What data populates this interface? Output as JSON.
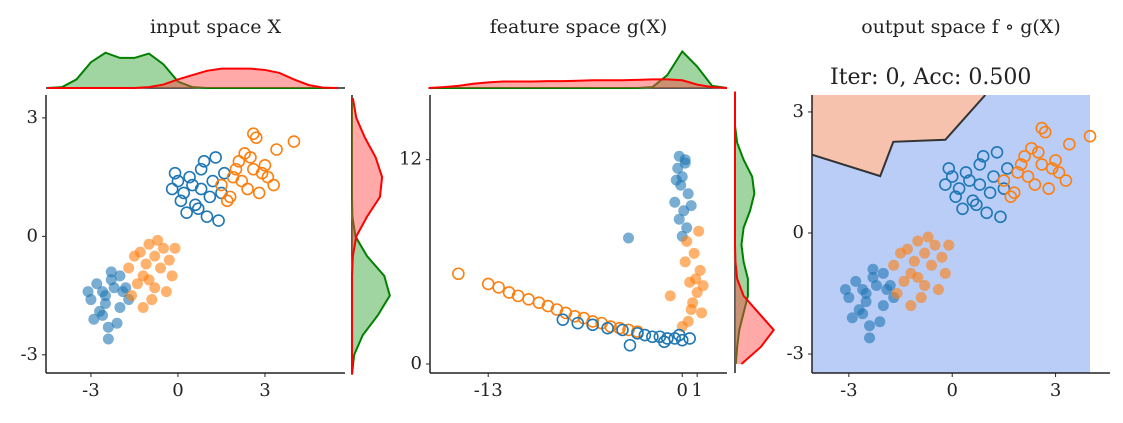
{
  "chart_data": [
    {
      "type": "scatter",
      "title": "input space X",
      "xlim": [
        -4.55,
        5.76
      ],
      "ylim": [
        -3.46,
        3.58
      ],
      "xticks": [
        -3,
        0,
        3
      ],
      "yticks": [
        -3,
        0,
        3
      ],
      "series": [
        {
          "color": "#1f77b4",
          "marker": "filled",
          "x": [
            -2.8,
            -2.5,
            -2.2,
            -2.0,
            -3.0,
            -2.6,
            -2.3,
            -1.9,
            -2.7,
            -2.4,
            -3.1,
            -2.1,
            -2.5,
            -2.9,
            -1.8,
            -2.3,
            -2.6,
            -2.0,
            -2.4,
            -1.7
          ],
          "values": [
            -1.2,
            -1.5,
            -1.3,
            -1.8,
            -1.6,
            -2.0,
            -1.1,
            -1.4,
            -1.9,
            -2.6,
            -1.4,
            -2.2,
            -1.7,
            -2.1,
            -1.3,
            -0.9,
            -1.4,
            -1.0,
            -2.3,
            -1.6
          ]
        },
        {
          "color": "#ff7f0e",
          "marker": "filled",
          "x": [
            -1.5,
            -1.0,
            -0.6,
            -1.2,
            -0.3,
            -0.8,
            -1.4,
            -0.5,
            -1.1,
            -0.9,
            -1.7,
            -0.2,
            -0.7,
            -1.3,
            -0.4,
            -1.0,
            -1.6,
            -0.8,
            -0.1,
            -1.2
          ],
          "values": [
            -0.5,
            -0.2,
            -0.8,
            -1.0,
            -0.6,
            -1.3,
            -1.2,
            -0.3,
            -0.7,
            -1.6,
            -0.8,
            -1.0,
            -0.1,
            -0.4,
            -1.4,
            -1.1,
            -1.5,
            -0.5,
            -0.3,
            -1.8
          ]
        },
        {
          "color": "#1f77b4",
          "marker": "hollow",
          "x": [
            -0.2,
            0.1,
            0.4,
            0.8,
            1.2,
            1.5,
            0.3,
            0.6,
            1.0,
            -0.1,
            0.9,
            1.3,
            0.5,
            0.2,
            1.6,
            0.7,
            1.1,
            0.0,
            1.4,
            0.8
          ],
          "values": [
            1.2,
            0.9,
            1.5,
            1.7,
            1.4,
            1.1,
            0.6,
            0.8,
            0.5,
            1.6,
            1.9,
            2.0,
            1.3,
            1.1,
            1.6,
            0.7,
            1.0,
            1.4,
            0.4,
            1.2
          ]
        },
        {
          "color": "#ff7f0e",
          "marker": "hollow",
          "x": [
            1.5,
            2.0,
            2.5,
            3.0,
            2.7,
            2.2,
            1.8,
            3.4,
            2.9,
            2.4,
            1.7,
            2.6,
            3.1,
            2.1,
            4.0,
            2.8,
            2.3,
            1.9,
            2.6,
            3.3
          ],
          "values": [
            1.3,
            1.7,
            2.0,
            1.8,
            2.5,
            1.4,
            1.0,
            2.2,
            1.6,
            1.2,
            0.9,
            2.6,
            1.5,
            1.9,
            2.4,
            1.1,
            2.1,
            1.5,
            1.7,
            1.3
          ]
        }
      ],
      "top_margin": {
        "ylim": [
          0,
          1
        ],
        "x": [
          -4.5,
          -4,
          -3.5,
          -3,
          -2.5,
          -2,
          -1.5,
          -1,
          -0.5,
          0,
          0.5,
          1,
          1.5,
          2,
          2.5,
          3,
          3.5,
          4,
          4.5,
          5,
          5.5
        ],
        "series": [
          {
            "color": "#008000",
            "fill": "#2ca02c",
            "values": [
              0,
              0.02,
              0.2,
              0.6,
              0.82,
              0.7,
              0.7,
              0.8,
              0.55,
              0.15,
              0.02,
              0,
              0,
              0,
              0,
              0,
              0,
              0,
              0,
              0,
              0
            ]
          },
          {
            "color": "#ff0000",
            "fill": "#ff4040",
            "values": [
              0,
              0,
              0,
              0,
              0,
              0,
              0,
              0.02,
              0.08,
              0.2,
              0.3,
              0.4,
              0.45,
              0.45,
              0.45,
              0.42,
              0.35,
              0.2,
              0.07,
              0.01,
              0
            ]
          }
        ]
      },
      "right_margin": {
        "xlim": [
          0,
          1
        ],
        "y": [
          -3.5,
          -3,
          -2.5,
          -2,
          -1.5,
          -1,
          -0.5,
          0,
          0.5,
          1,
          1.5,
          2,
          2.5,
          3,
          3.5
        ],
        "series": [
          {
            "color": "#008000",
            "fill": "#2ca02c",
            "values": [
              0,
              0.05,
              0.25,
              0.6,
              0.88,
              0.75,
              0.35,
              0.08,
              0.01,
              0,
              0,
              0,
              0,
              0,
              0
            ]
          },
          {
            "color": "#ff0000",
            "fill": "#ff4040",
            "values": [
              0,
              0,
              0,
              0,
              0,
              0,
              0.02,
              0.1,
              0.35,
              0.65,
              0.7,
              0.55,
              0.3,
              0.1,
              0.02
            ]
          }
        ]
      }
    },
    {
      "type": "scatter",
      "title": "feature space g(X)",
      "xlim": [
        -16.9,
        3.0
      ],
      "ylim": [
        -0.53,
        15.8
      ],
      "xticks": [
        -13,
        0,
        1
      ],
      "yticks": [
        0,
        12
      ],
      "series": [
        {
          "color": "#1f77b4",
          "marker": "filled",
          "x": [
            -0.3,
            0,
            0.2,
            -0.1,
            0.4,
            -0.5,
            0.1,
            -0.2,
            0.3,
            0,
            -0.4,
            0.2,
            -3.6,
            0.6,
            -0.2
          ],
          "values": [
            11.5,
            11,
            12,
            10.5,
            10,
            9.5,
            9,
            8.5,
            8,
            7.5,
            10.8,
            11.8,
            7.4,
            9.3,
            12.2
          ]
        },
        {
          "color": "#ff7f0e",
          "marker": "filled",
          "x": [
            0.3,
            0.8,
            1.2,
            0.5,
            1.0,
            0.7,
            1.3,
            0.4,
            0.9,
            -0.8,
            0.2,
            1.1,
            0.6,
            1.4,
            0.0
          ],
          "values": [
            7.2,
            6.5,
            5.5,
            4.8,
            4.2,
            3.6,
            3.0,
            2.5,
            5.0,
            4.0,
            6.0,
            7.8,
            3.2,
            4.6,
            2.2
          ]
        },
        {
          "color": "#ff7f0e",
          "marker": "hollow",
          "x": [
            -15,
            -13,
            -12.3,
            -11.6,
            -11,
            -10.3,
            -9.6,
            -9,
            -8.4,
            -7.8,
            -7.2,
            -6.6,
            -6,
            -5.4,
            -4.8,
            -4.2,
            -3.6,
            -3
          ],
          "values": [
            5.3,
            4.7,
            4.5,
            4.2,
            4.0,
            3.8,
            3.6,
            3.4,
            3.2,
            3.0,
            2.8,
            2.7,
            2.5,
            2.4,
            2.2,
            2.1,
            2.0,
            1.9
          ]
        },
        {
          "color": "#1f77b4",
          "marker": "hollow",
          "x": [
            -8,
            -7,
            -6,
            -5,
            -4,
            -3,
            -2.5,
            -2,
            -1.5,
            -1,
            -0.5,
            0,
            0.5,
            -3.5,
            -1.2,
            -0.2
          ],
          "values": [
            2.6,
            2.4,
            2.3,
            2.1,
            2.0,
            1.8,
            1.7,
            1.6,
            1.6,
            1.5,
            1.5,
            1.4,
            1.5,
            1.1,
            1.3,
            1.7
          ]
        }
      ],
      "top_margin": {
        "ylim": [
          0,
          1
        ],
        "x": [
          -17,
          -16,
          -15,
          -14,
          -13,
          -12,
          -11,
          -10,
          -9,
          -8,
          -7,
          -6,
          -5,
          -4,
          -3,
          -2,
          -1,
          0,
          1,
          2,
          3
        ],
        "series": [
          {
            "color": "#008000",
            "fill": "#2ca02c",
            "values": [
              0,
              0,
              0,
              0,
              0,
              0,
              0,
              0,
              0,
              0,
              0,
              0,
              0,
              0,
              0,
              0.02,
              0.3,
              0.85,
              0.5,
              0.05,
              0
            ]
          },
          {
            "color": "#ff0000",
            "fill": "#ff4040",
            "values": [
              0,
              0.02,
              0.05,
              0.1,
              0.13,
              0.15,
              0.15,
              0.15,
              0.16,
              0.16,
              0.17,
              0.18,
              0.18,
              0.18,
              0.19,
              0.2,
              0.2,
              0.18,
              0.08,
              0.02,
              0
            ]
          }
        ]
      },
      "right_margin": {
        "xlim": [
          0,
          1
        ],
        "y": [
          0,
          1,
          2,
          3,
          4,
          5,
          6,
          7,
          8,
          9,
          10,
          11,
          12,
          13,
          14,
          15,
          16
        ],
        "series": [
          {
            "color": "#008000",
            "fill": "#2ca02c",
            "values": [
              0.02,
              0.05,
              0.1,
              0.2,
              0.3,
              0.3,
              0.2,
              0.15,
              0.2,
              0.35,
              0.45,
              0.4,
              0.2,
              0.05,
              0,
              0,
              0
            ]
          },
          {
            "color": "#ff0000",
            "fill": "#ff4040",
            "values": [
              0.15,
              0.6,
              0.9,
              0.55,
              0.2,
              0.05,
              0.01,
              0,
              0,
              0,
              0,
              0,
              0,
              0,
              0,
              0,
              0
            ]
          }
        ]
      }
    },
    {
      "type": "scatter",
      "title": "output space f ∘ g(X)",
      "subtitle": "Iter: 0, Acc: 0.500",
      "xlim": [
        -4.07,
        4.58
      ],
      "ylim": [
        -3.47,
        3.42
      ],
      "xticks": [
        -3,
        0,
        3
      ],
      "yticks": [
        -3,
        0,
        3
      ],
      "region": {
        "color": "#b9cdf7",
        "xlim": [
          -4.07,
          4.0
        ],
        "ylim": [
          -3.47,
          3.42
        ]
      },
      "boundary": {
        "fill": "#f6c1ad",
        "color": "#333333",
        "x": [
          -4.07,
          -2.09,
          -1.71,
          -0.2,
          0.96
        ],
        "y": [
          1.94,
          1.41,
          2.26,
          2.31,
          3.42
        ]
      },
      "series": [
        {
          "color": "#1f77b4",
          "marker": "filled",
          "x": [
            -2.8,
            -2.5,
            -2.2,
            -2.0,
            -3.0,
            -2.6,
            -2.3,
            -1.9,
            -2.7,
            -2.4,
            -3.1,
            -2.1,
            -2.5,
            -2.9,
            -1.8,
            -2.3,
            -2.6,
            -2.0,
            -2.4,
            -1.7
          ],
          "values": [
            -1.2,
            -1.5,
            -1.3,
            -1.8,
            -1.6,
            -2.0,
            -1.1,
            -1.4,
            -1.9,
            -2.6,
            -1.4,
            -2.2,
            -1.7,
            -2.1,
            -1.3,
            -0.9,
            -1.4,
            -1.0,
            -2.3,
            -1.6
          ]
        },
        {
          "color": "#ff7f0e",
          "marker": "filled",
          "x": [
            -1.5,
            -1.0,
            -0.6,
            -1.2,
            -0.3,
            -0.8,
            -1.4,
            -0.5,
            -1.1,
            -0.9,
            -1.7,
            -0.2,
            -0.7,
            -1.3,
            -0.4,
            -1.0,
            -1.6,
            -0.8,
            -0.1,
            -1.2
          ],
          "values": [
            -0.5,
            -0.2,
            -0.8,
            -1.0,
            -0.6,
            -1.3,
            -1.2,
            -0.3,
            -0.7,
            -1.6,
            -0.8,
            -1.0,
            -0.1,
            -0.4,
            -1.4,
            -1.1,
            -1.5,
            -0.5,
            -0.3,
            -1.8
          ]
        },
        {
          "color": "#1f77b4",
          "marker": "hollow",
          "x": [
            -0.2,
            0.1,
            0.4,
            0.8,
            1.2,
            1.5,
            0.3,
            0.6,
            1.0,
            -0.1,
            0.9,
            1.3,
            0.5,
            0.2,
            1.6,
            0.7,
            1.1,
            0.0,
            1.4,
            0.8
          ],
          "values": [
            1.2,
            0.9,
            1.5,
            1.7,
            1.4,
            1.1,
            0.6,
            0.8,
            0.5,
            1.6,
            1.9,
            2.0,
            1.3,
            1.1,
            1.6,
            0.7,
            1.0,
            1.4,
            0.4,
            1.2
          ]
        },
        {
          "color": "#ff7f0e",
          "marker": "hollow",
          "x": [
            1.5,
            2.0,
            2.5,
            3.0,
            2.7,
            2.2,
            1.8,
            3.4,
            2.9,
            2.4,
            1.7,
            2.6,
            3.1,
            2.1,
            4.0,
            2.8,
            2.3,
            1.9,
            2.6,
            3.3
          ],
          "values": [
            1.3,
            1.7,
            2.0,
            1.8,
            2.5,
            1.4,
            1.0,
            2.2,
            1.6,
            1.2,
            0.9,
            2.6,
            1.5,
            1.9,
            2.4,
            1.1,
            2.1,
            1.5,
            1.7,
            1.3
          ]
        }
      ]
    }
  ]
}
